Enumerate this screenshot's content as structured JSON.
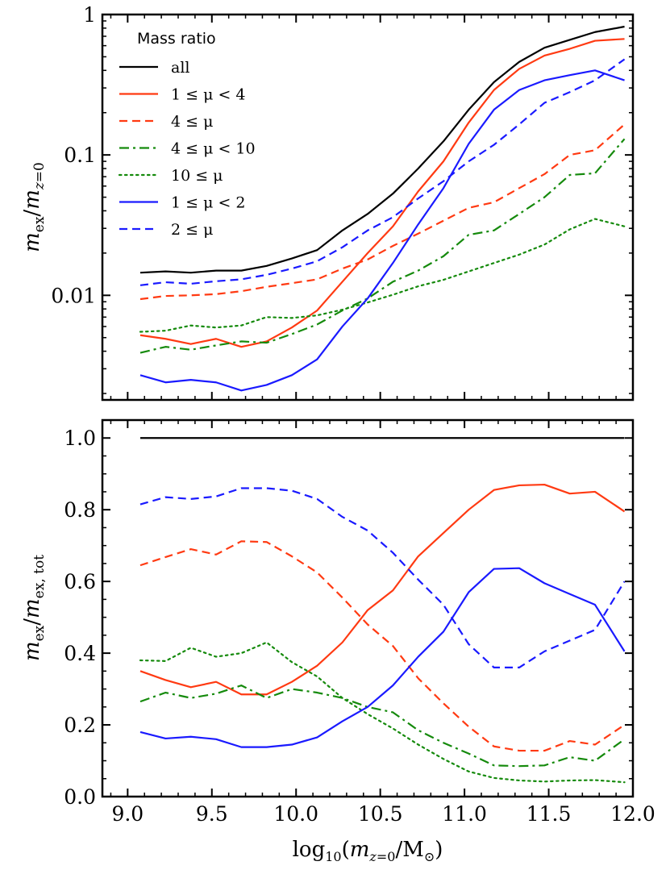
{
  "chart_data": [
    {
      "type": "line",
      "ylabel": "m_ex / m_z=0",
      "yscale": "log",
      "xlim": [
        8.85,
        12.0
      ],
      "ylim": [
        0.0018,
        1.0
      ],
      "yticks": [
        {
          "value": 1,
          "label": "1"
        },
        {
          "value": 0.1,
          "label": "0.1"
        },
        {
          "value": 0.01,
          "label": "0.01"
        }
      ],
      "legend": {
        "title": "Mass ratio",
        "placement": "top-left",
        "entries": [
          "all",
          "1 ≤ μ < 4",
          "4 ≤ μ",
          "4 ≤ μ < 10",
          "10 ≤ μ",
          "1 ≤ μ < 2",
          "2 ≤ μ"
        ]
      },
      "x": [
        9.075,
        9.225,
        9.375,
        9.525,
        9.675,
        9.825,
        9.975,
        10.125,
        10.275,
        10.425,
        10.575,
        10.725,
        10.875,
        11.025,
        11.175,
        11.325,
        11.475,
        11.625,
        11.775,
        11.95
      ],
      "series": [
        {
          "name": "all",
          "color": "#000000",
          "dash": "solid",
          "values": [
            0.0145,
            0.0148,
            0.0145,
            0.015,
            0.015,
            0.0162,
            0.0183,
            0.021,
            0.029,
            0.038,
            0.053,
            0.08,
            0.125,
            0.21,
            0.33,
            0.46,
            0.58,
            0.66,
            0.75,
            0.82
          ]
        },
        {
          "name": "1 ≤ μ < 4",
          "color": "#ff3a12",
          "dash": "solid",
          "values": [
            0.0052,
            0.0049,
            0.0045,
            0.0049,
            0.0043,
            0.0047,
            0.0059,
            0.0078,
            0.0125,
            0.02,
            0.031,
            0.055,
            0.09,
            0.17,
            0.29,
            0.41,
            0.51,
            0.57,
            0.65,
            0.67
          ]
        },
        {
          "name": "4 ≤ μ",
          "color": "#ff3a12",
          "dash": "dashed",
          "values": [
            0.0094,
            0.0099,
            0.01,
            0.0102,
            0.0107,
            0.0115,
            0.0122,
            0.013,
            0.0155,
            0.018,
            0.0225,
            0.0275,
            0.034,
            0.042,
            0.046,
            0.058,
            0.073,
            0.1,
            0.108,
            0.165
          ]
        },
        {
          "name": "4 ≤ μ < 10",
          "color": "#158a0c",
          "dash": "dashdot",
          "values": [
            0.0039,
            0.0043,
            0.0041,
            0.0044,
            0.0047,
            0.0046,
            0.0053,
            0.0062,
            0.0078,
            0.0095,
            0.0125,
            0.015,
            0.019,
            0.027,
            0.029,
            0.038,
            0.05,
            0.072,
            0.074,
            0.13
          ]
        },
        {
          "name": "10 ≤ μ",
          "color": "#158a0c",
          "dash": "dotted",
          "values": [
            0.0055,
            0.0056,
            0.0061,
            0.0059,
            0.0061,
            0.007,
            0.0069,
            0.0072,
            0.0079,
            0.0089,
            0.0101,
            0.0116,
            0.0129,
            0.0148,
            0.017,
            0.0195,
            0.023,
            0.0295,
            0.035,
            0.031
          ]
        },
        {
          "name": "1 ≤ μ < 2",
          "color": "#1a1aff",
          "dash": "solid",
          "values": [
            0.0027,
            0.0024,
            0.0025,
            0.0024,
            0.0021,
            0.0023,
            0.0027,
            0.0035,
            0.006,
            0.0095,
            0.017,
            0.032,
            0.058,
            0.12,
            0.21,
            0.29,
            0.34,
            0.37,
            0.4,
            0.34
          ]
        },
        {
          "name": "2 ≤ μ",
          "color": "#1a1aff",
          "dash": "dashed",
          "values": [
            0.0118,
            0.0124,
            0.0121,
            0.0126,
            0.013,
            0.014,
            0.0155,
            0.0175,
            0.022,
            0.029,
            0.036,
            0.049,
            0.065,
            0.09,
            0.118,
            0.165,
            0.235,
            0.28,
            0.34,
            0.48
          ]
        }
      ]
    },
    {
      "type": "line",
      "xlabel": "log10(m_z=0 / M⊙)",
      "ylabel": "m_ex / m_ex, tot",
      "xlim": [
        8.85,
        12.0
      ],
      "ylim": [
        0.0,
        1.05
      ],
      "xticks": [
        {
          "value": 9.0,
          "label": "9.0"
        },
        {
          "value": 9.5,
          "label": "9.5"
        },
        {
          "value": 10.0,
          "label": "10.0"
        },
        {
          "value": 10.5,
          "label": "10.5"
        },
        {
          "value": 11.0,
          "label": "11.0"
        },
        {
          "value": 11.5,
          "label": "11.5"
        },
        {
          "value": 12.0,
          "label": "12.0"
        }
      ],
      "yticks": [
        {
          "value": 0.0,
          "label": "0.0"
        },
        {
          "value": 0.2,
          "label": "0.2"
        },
        {
          "value": 0.4,
          "label": "0.4"
        },
        {
          "value": 0.6,
          "label": "0.6"
        },
        {
          "value": 0.8,
          "label": "0.8"
        },
        {
          "value": 1.0,
          "label": "1.0"
        }
      ],
      "x": [
        9.075,
        9.225,
        9.375,
        9.525,
        9.675,
        9.825,
        9.975,
        10.125,
        10.275,
        10.425,
        10.575,
        10.725,
        10.875,
        11.025,
        11.175,
        11.325,
        11.475,
        11.625,
        11.775,
        11.95
      ],
      "series": [
        {
          "name": "all",
          "color": "#000000",
          "dash": "solid",
          "values": [
            1.0,
            1.0,
            1.0,
            1.0,
            1.0,
            1.0,
            1.0,
            1.0,
            1.0,
            1.0,
            1.0,
            1.0,
            1.0,
            1.0,
            1.0,
            1.0,
            1.0,
            1.0,
            1.0,
            1.0
          ]
        },
        {
          "name": "1 ≤ μ < 4",
          "color": "#ff3a12",
          "dash": "solid",
          "values": [
            0.35,
            0.325,
            0.305,
            0.32,
            0.285,
            0.285,
            0.32,
            0.365,
            0.43,
            0.52,
            0.575,
            0.67,
            0.735,
            0.8,
            0.855,
            0.868,
            0.87,
            0.845,
            0.85,
            0.795
          ]
        },
        {
          "name": "4 ≤ μ",
          "color": "#ff3a12",
          "dash": "dashed",
          "values": [
            0.645,
            0.668,
            0.69,
            0.675,
            0.712,
            0.71,
            0.67,
            0.625,
            0.555,
            0.48,
            0.42,
            0.33,
            0.26,
            0.195,
            0.14,
            0.128,
            0.128,
            0.155,
            0.145,
            0.2
          ]
        },
        {
          "name": "4 ≤ μ < 10",
          "color": "#158a0c",
          "dash": "dashdot",
          "values": [
            0.265,
            0.29,
            0.275,
            0.287,
            0.31,
            0.275,
            0.3,
            0.29,
            0.275,
            0.25,
            0.235,
            0.185,
            0.15,
            0.12,
            0.087,
            0.085,
            0.087,
            0.11,
            0.1,
            0.16
          ]
        },
        {
          "name": "10 ≤ μ",
          "color": "#158a0c",
          "dash": "dotted",
          "values": [
            0.38,
            0.378,
            0.415,
            0.39,
            0.4,
            0.43,
            0.375,
            0.335,
            0.275,
            0.23,
            0.19,
            0.145,
            0.105,
            0.07,
            0.052,
            0.045,
            0.042,
            0.045,
            0.046,
            0.04
          ]
        },
        {
          "name": "1 ≤ μ < 2",
          "color": "#1a1aff",
          "dash": "solid",
          "values": [
            0.18,
            0.162,
            0.167,
            0.16,
            0.138,
            0.138,
            0.145,
            0.165,
            0.21,
            0.25,
            0.31,
            0.39,
            0.46,
            0.57,
            0.635,
            0.637,
            0.595,
            0.565,
            0.535,
            0.405
          ]
        },
        {
          "name": "2 ≤ μ",
          "color": "#1a1aff",
          "dash": "dashed",
          "values": [
            0.815,
            0.835,
            0.83,
            0.837,
            0.86,
            0.86,
            0.853,
            0.83,
            0.78,
            0.742,
            0.68,
            0.605,
            0.535,
            0.425,
            0.36,
            0.36,
            0.405,
            0.435,
            0.465,
            0.6
          ]
        }
      ]
    }
  ]
}
